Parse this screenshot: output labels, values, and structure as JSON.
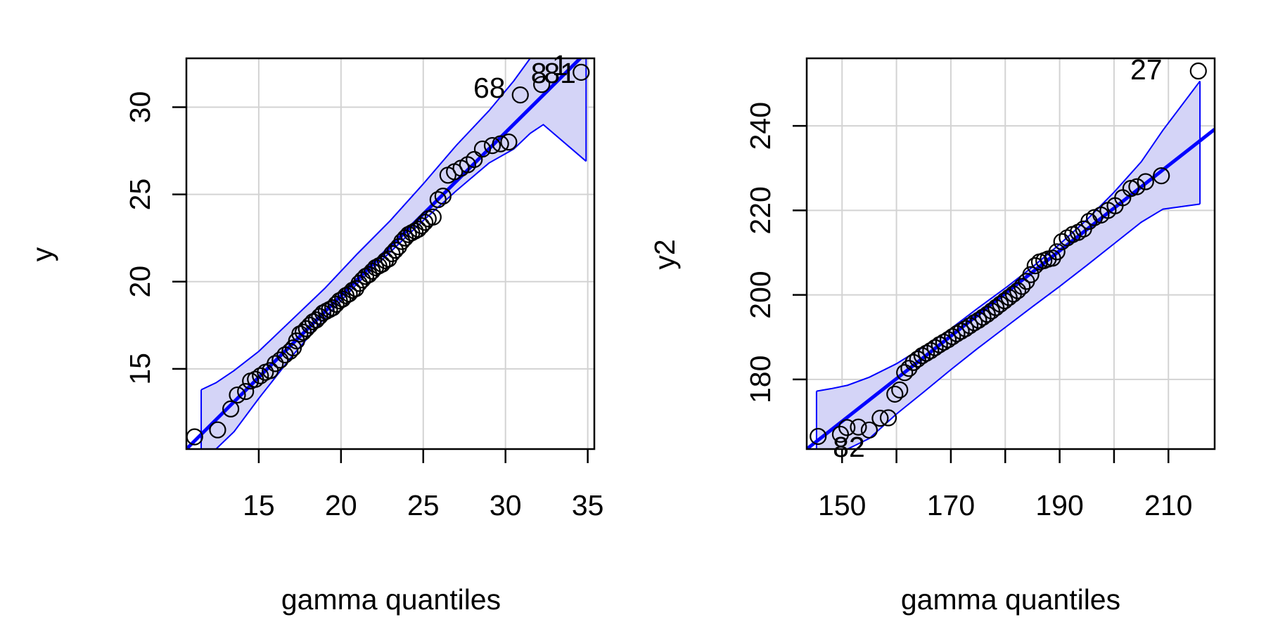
{
  "chart_data": [
    {
      "type": "scatter",
      "title": "",
      "xlabel": "gamma quantiles",
      "ylabel": "y",
      "xlim": [
        10.6,
        35.4
      ],
      "ylim": [
        10.4,
        32.8
      ],
      "xticks": [
        "15",
        "20",
        "25",
        "30",
        "35"
      ],
      "yticks": [
        "15",
        "20",
        "25",
        "30"
      ],
      "grid": true,
      "colors": {
        "points": "#000000",
        "line": "#0000ff",
        "band_fill": "#d4d4f7",
        "band_edge": "#0000ff",
        "grid": "#d3d3d3"
      },
      "reference_line": {
        "from": [
          10.6,
          10.4
        ],
        "to": [
          35.4,
          33.6
        ]
      },
      "envelope": {
        "x": [
          11.5,
          12.4,
          13.5,
          15.0,
          17.0,
          19.0,
          21.0,
          23.0,
          25.0,
          27.0,
          29.0,
          30.5,
          31.5,
          32.3,
          34.9
        ],
        "upper": [
          13.8,
          14.2,
          14.9,
          16.0,
          17.8,
          19.6,
          21.6,
          23.5,
          25.6,
          27.8,
          29.8,
          31.5,
          32.8,
          32.8,
          32.8
        ],
        "lower": [
          10.4,
          10.4,
          11.4,
          13.3,
          15.7,
          17.9,
          19.9,
          21.7,
          23.5,
          25.2,
          26.8,
          27.6,
          28.5,
          29.0,
          26.9
        ]
      },
      "points": {
        "x": [
          11.1,
          12.5,
          13.3,
          13.7,
          14.2,
          14.5,
          14.8,
          15.1,
          15.4,
          15.7,
          16.0,
          16.3,
          16.6,
          16.9,
          17.1,
          17.3,
          17.5,
          17.7,
          17.9,
          18.1,
          18.3,
          18.5,
          18.7,
          18.9,
          19.1,
          19.3,
          19.5,
          19.7,
          19.9,
          20.1,
          20.3,
          20.5,
          20.7,
          20.9,
          21.1,
          21.3,
          21.5,
          21.7,
          21.9,
          22.1,
          22.3,
          22.5,
          22.7,
          22.9,
          23.1,
          23.3,
          23.5,
          23.7,
          23.9,
          24.1,
          24.3,
          24.5,
          24.7,
          24.9,
          25.1,
          25.3,
          25.6,
          25.9,
          26.2,
          26.5,
          26.9,
          27.3,
          27.7,
          28.1,
          28.6,
          29.2,
          29.7,
          30.2,
          30.9,
          32.2,
          34.6
        ],
        "y": [
          11.1,
          11.5,
          12.7,
          13.5,
          13.7,
          14.3,
          14.4,
          14.6,
          14.8,
          14.9,
          15.3,
          15.5,
          15.8,
          16.0,
          16.2,
          16.6,
          17.0,
          17.1,
          17.3,
          17.5,
          17.7,
          17.8,
          18.0,
          18.2,
          18.3,
          18.4,
          18.5,
          18.7,
          18.9,
          19.0,
          19.2,
          19.3,
          19.5,
          19.6,
          19.9,
          20.1,
          20.3,
          20.4,
          20.6,
          20.8,
          20.9,
          21.0,
          21.2,
          21.3,
          21.6,
          21.8,
          22.0,
          22.3,
          22.5,
          22.7,
          22.8,
          22.9,
          23.0,
          23.2,
          23.4,
          23.6,
          23.7,
          24.7,
          24.9,
          26.1,
          26.3,
          26.5,
          26.7,
          27.0,
          27.6,
          27.8,
          27.9,
          28.0,
          30.7,
          31.3,
          32.0
        ]
      },
      "labeled_points": [
        {
          "label": "68",
          "x": 30.9,
          "y": 30.7
        },
        {
          "label": "8",
          "x": 32.2,
          "y": 31.3
        },
        {
          "label": "81",
          "x": 32.2,
          "y": 31.3
        },
        {
          "label": "1",
          "x": 34.6,
          "y": 32.0
        }
      ]
    },
    {
      "type": "scatter",
      "title": "",
      "xlabel": "gamma quantiles",
      "ylabel": "y2",
      "xlim": [
        143.5,
        218.5
      ],
      "ylim": [
        163.5,
        256
      ],
      "xticks": [
        "150",
        "170",
        "190",
        "210"
      ],
      "yticks": [
        "180",
        "200",
        "220",
        "240"
      ],
      "xtick_values": [
        150,
        170,
        190,
        210
      ],
      "xtick_marks": [
        150,
        160,
        170,
        180,
        190,
        200,
        210
      ],
      "ytick_values": [
        180,
        200,
        220,
        240
      ],
      "ytick_marks": [
        180,
        200,
        220,
        240
      ],
      "grid": true,
      "colors": {
        "points": "#000000",
        "line": "#0000ff",
        "band_fill": "#d4d4f7",
        "band_edge": "#0000ff",
        "grid": "#d3d3d3"
      },
      "reference_line": {
        "from": [
          143.5,
          163.5
        ],
        "to": [
          218.5,
          239.2
        ]
      },
      "envelope": {
        "x": [
          145.3,
          148.0,
          151.0,
          155.0,
          160.0,
          165.0,
          170.0,
          175.0,
          180.0,
          185.0,
          190.0,
          195.0,
          200.0,
          205.0,
          209.0,
          215.8
        ],
        "upper": [
          177.2,
          177.8,
          178.6,
          180.5,
          183.7,
          187.7,
          192.0,
          196.9,
          201.6,
          206.6,
          212.0,
          217.8,
          224.3,
          231.5,
          239.0,
          250.6
        ],
        "lower": [
          163.5,
          163.5,
          163.5,
          166.0,
          171.8,
          177.0,
          182.3,
          187.4,
          192.3,
          197.2,
          202.0,
          207.0,
          212.1,
          217.2,
          220.3,
          221.5
        ]
      },
      "points": {
        "x": [
          145.6,
          149.7,
          150.9,
          153.0,
          155.0,
          157.0,
          158.5,
          159.7,
          160.6,
          161.5,
          162.3,
          163.1,
          163.9,
          164.7,
          165.5,
          166.3,
          167.1,
          167.9,
          168.7,
          169.5,
          170.3,
          171.1,
          171.9,
          172.7,
          173.5,
          174.3,
          175.1,
          175.9,
          176.7,
          177.5,
          178.3,
          179.1,
          179.9,
          180.7,
          181.5,
          182.3,
          183.1,
          183.9,
          184.7,
          185.5,
          186.3,
          187.1,
          187.9,
          188.7,
          189.5,
          190.4,
          191.4,
          192.4,
          193.4,
          194.4,
          195.4,
          196.4,
          197.6,
          198.9,
          200.2,
          201.6,
          203.1,
          204.2,
          205.8,
          208.7,
          215.5
        ],
        "y": [
          166.5,
          167.0,
          168.6,
          168.7,
          168.0,
          170.8,
          170.9,
          176.5,
          177.5,
          181.6,
          182.6,
          184.0,
          184.8,
          185.6,
          186.2,
          186.8,
          187.5,
          188.2,
          188.8,
          189.4,
          190.1,
          190.8,
          191.4,
          192.0,
          192.7,
          193.4,
          194.0,
          194.7,
          195.4,
          196.2,
          197.0,
          197.8,
          198.6,
          199.4,
          200.2,
          201.0,
          202.0,
          203.2,
          204.8,
          206.9,
          207.8,
          208.1,
          208.5,
          208.7,
          210.2,
          212.6,
          213.5,
          214.3,
          214.8,
          215.6,
          217.4,
          218.3,
          218.9,
          220.0,
          221.1,
          223.0,
          225.2,
          225.6,
          226.8,
          228.2,
          253.0
        ]
      },
      "labeled_points": [
        {
          "label": "27",
          "x": 215.5,
          "y": 253.0
        },
        {
          "label": "82",
          "x": 149.7,
          "y": 167.0
        }
      ]
    }
  ]
}
